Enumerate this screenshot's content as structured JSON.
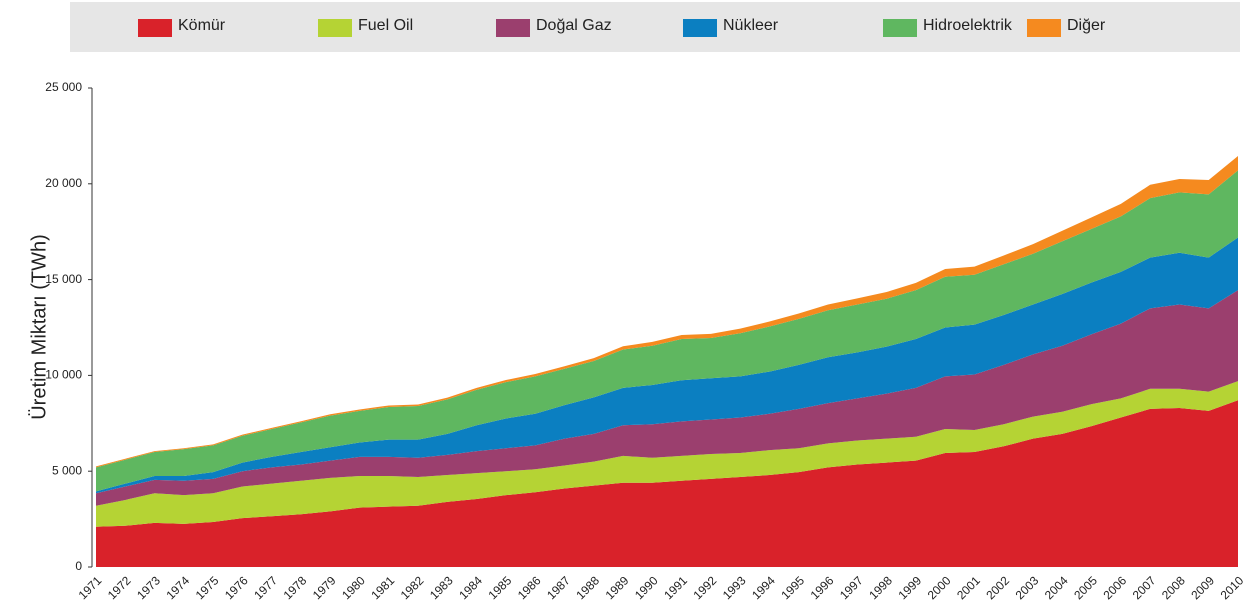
{
  "chart_data": {
    "type": "stacked_area",
    "ylabel": "Üretim Miktarı (TWh)",
    "categories": [
      "1971",
      "1972",
      "1973",
      "1974",
      "1975",
      "1976",
      "1977",
      "1978",
      "1979",
      "1980",
      "1981",
      "1982",
      "1983",
      "1984",
      "1985",
      "1986",
      "1987",
      "1988",
      "1989",
      "1990",
      "1991",
      "1992",
      "1993",
      "1994",
      "1995",
      "1996",
      "1997",
      "1998",
      "1999",
      "2000",
      "2001",
      "2002",
      "2003",
      "2004",
      "2005",
      "2006",
      "2007",
      "2008",
      "2009",
      "2010"
    ],
    "series": [
      {
        "name": "Kömür",
        "color": "#d9222a",
        "values": [
          2100,
          2150,
          2300,
          2250,
          2350,
          2550,
          2650,
          2750,
          2900,
          3100,
          3150,
          3200,
          3400,
          3550,
          3750,
          3900,
          4100,
          4250,
          4400,
          4400,
          4500,
          4600,
          4700,
          4800,
          4950,
          5200,
          5350,
          5450,
          5550,
          5950,
          6000,
          6300,
          6700,
          6950,
          7350,
          7800,
          8250,
          8300,
          8150,
          8700
        ]
      },
      {
        "name": "Fuel Oil",
        "color": "#b5d334",
        "values": [
          1100,
          1350,
          1550,
          1500,
          1500,
          1650,
          1700,
          1750,
          1750,
          1650,
          1600,
          1500,
          1400,
          1350,
          1250,
          1200,
          1200,
          1250,
          1400,
          1300,
          1300,
          1300,
          1250,
          1300,
          1250,
          1250,
          1250,
          1250,
          1250,
          1250,
          1150,
          1150,
          1150,
          1150,
          1150,
          1000,
          1050,
          1000,
          1000,
          1000
        ]
      },
      {
        "name": "Doğal Gaz",
        "color": "#9b3f6e",
        "values": [
          650,
          700,
          700,
          750,
          750,
          800,
          850,
          850,
          900,
          1000,
          1000,
          1000,
          1050,
          1150,
          1200,
          1250,
          1400,
          1450,
          1600,
          1750,
          1800,
          1800,
          1850,
          1900,
          2050,
          2100,
          2200,
          2350,
          2550,
          2750,
          2900,
          3100,
          3250,
          3450,
          3650,
          3900,
          4200,
          4400,
          4350,
          4750
        ]
      },
      {
        "name": "Nükleer",
        "color": "#0b7fc1",
        "values": [
          100,
          150,
          200,
          250,
          350,
          450,
          550,
          650,
          700,
          750,
          900,
          950,
          1100,
          1350,
          1550,
          1650,
          1750,
          1900,
          1950,
          2050,
          2150,
          2150,
          2150,
          2200,
          2300,
          2400,
          2400,
          2450,
          2550,
          2550,
          2600,
          2600,
          2600,
          2700,
          2700,
          2700,
          2650,
          2700,
          2650,
          2750
        ]
      },
      {
        "name": "Hidroelektrik",
        "color": "#5fb760",
        "values": [
          1250,
          1250,
          1250,
          1400,
          1400,
          1400,
          1450,
          1550,
          1650,
          1650,
          1700,
          1750,
          1800,
          1850,
          1900,
          1950,
          1900,
          1900,
          2000,
          2050,
          2150,
          2100,
          2250,
          2350,
          2400,
          2450,
          2500,
          2500,
          2550,
          2650,
          2600,
          2650,
          2650,
          2750,
          2800,
          2900,
          3100,
          3150,
          3300,
          3500
        ]
      },
      {
        "name": "Diğer",
        "color": "#f58a1f",
        "values": [
          50,
          50,
          50,
          50,
          50,
          60,
          60,
          60,
          70,
          70,
          80,
          80,
          90,
          100,
          110,
          120,
          130,
          150,
          170,
          200,
          210,
          220,
          240,
          260,
          280,
          300,
          320,
          350,
          380,
          400,
          430,
          460,
          500,
          550,
          600,
          650,
          700,
          700,
          750,
          750
        ]
      }
    ],
    "ylim": [
      0,
      25000
    ],
    "yticks": [
      0,
      {
        "value": 5000,
        "label": "5 000"
      },
      {
        "value": 10000,
        "label": "10 000"
      },
      {
        "value": 15000,
        "label": "15 000"
      },
      {
        "value": 20000,
        "label": "20 000"
      },
      {
        "value": 25000,
        "label": "25 000"
      }
    ],
    "grid": false,
    "legend": "top"
  }
}
